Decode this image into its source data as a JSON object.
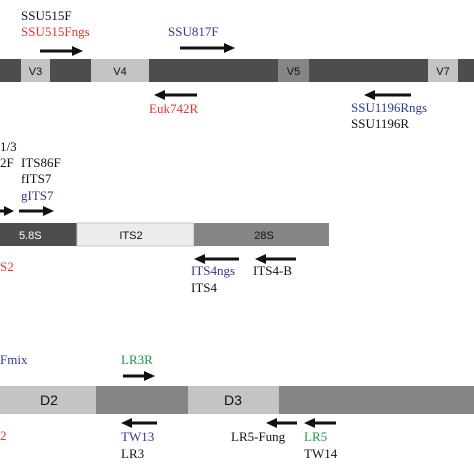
{
  "colors": {
    "black": "#111111",
    "red": "#e8332a",
    "blue": "#2e3a8c",
    "green": "#1a9a4a",
    "dark_gray": "#4d4d4d",
    "mid_gray": "#858585",
    "light_gray": "#c4c4c4",
    "pale_gray": "#ececec"
  },
  "ssu": {
    "segments": [
      "V3",
      "V4",
      "V5",
      "V7"
    ],
    "primers_above": [
      {
        "name": "SSU515F",
        "color": "black"
      },
      {
        "name": "SSU515Fngs",
        "color": "red"
      },
      {
        "name": "SSU817F",
        "color": "blue"
      }
    ],
    "primers_below": [
      {
        "name": "Euk742R",
        "color": "red"
      },
      {
        "name": "SSU1196Rngs",
        "color": "blue"
      },
      {
        "name": "SSU1196R",
        "color": "black"
      }
    ]
  },
  "its": {
    "segments": [
      "5.8S",
      "ITS2",
      "28S"
    ],
    "partial_top": "1/3",
    "partial_left": "2F",
    "primers_above": [
      {
        "name": "ITS86F",
        "color": "black"
      },
      {
        "name": "fITS7",
        "color": "black"
      },
      {
        "name": "gITS7",
        "color": "blue"
      }
    ],
    "primers_below": [
      {
        "name": "ITS4ngs",
        "color": "blue"
      },
      {
        "name": "ITS4",
        "color": "black"
      },
      {
        "name": "ITS4-B",
        "color": "black"
      }
    ],
    "partial_below": "S2"
  },
  "lsu": {
    "segments": [
      "D2",
      "D3"
    ],
    "partial_above": "Fmix",
    "partial_below": "2",
    "primers_above": [
      {
        "name": "LR3R",
        "color": "green"
      }
    ],
    "primers_below": [
      {
        "name": "TW13",
        "color": "blue"
      },
      {
        "name": "LR3",
        "color": "black"
      },
      {
        "name": "LR5-Fung",
        "color": "black"
      },
      {
        "name": "LR5",
        "color": "green"
      },
      {
        "name": "TW14",
        "color": "black"
      }
    ]
  }
}
